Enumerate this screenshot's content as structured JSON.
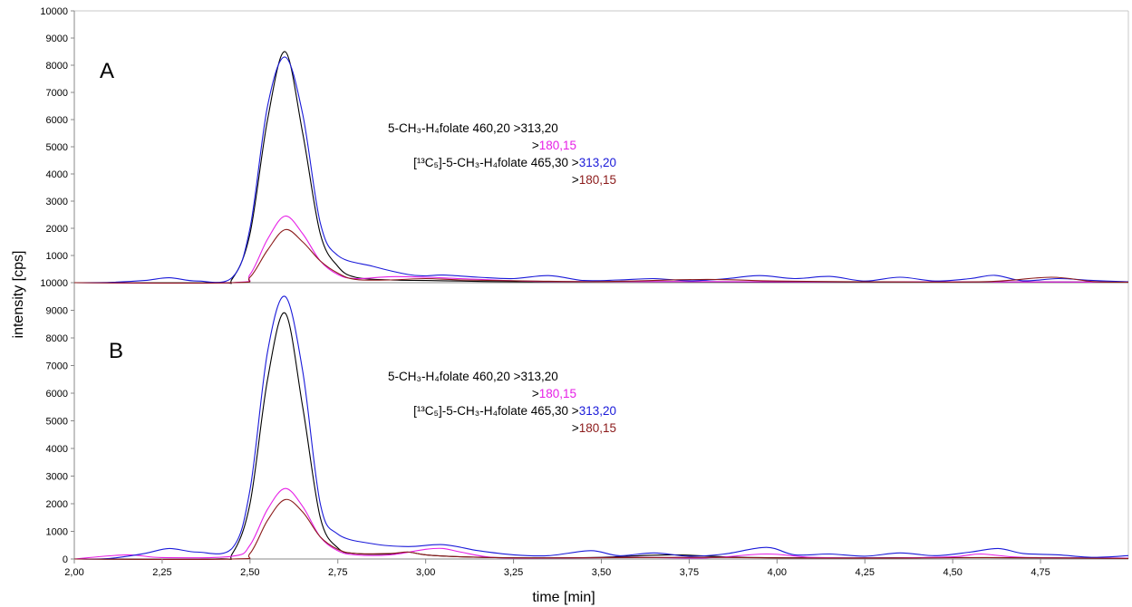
{
  "chart_data": {
    "type": "line",
    "xlabel": "time [min]",
    "ylabel": "intensity [cps]",
    "x_ticks": [
      "2,00",
      "2,25",
      "2,50",
      "2,75",
      "3,00",
      "3,25",
      "3,50",
      "3,75",
      "4,00",
      "4,25",
      "4,50",
      "4,75"
    ],
    "x_tick_values": [
      2.0,
      2.25,
      2.5,
      2.75,
      3.0,
      3.25,
      3.5,
      3.75,
      4.0,
      4.25,
      4.5,
      4.75
    ],
    "xlim": [
      2.0,
      5.0
    ],
    "grid": false,
    "colors": {
      "black": "#000000",
      "magenta": "#e61fe6",
      "blue": "#1a1ad9",
      "brown": "#8b1a1a"
    },
    "panels": [
      {
        "label": "A",
        "ylim": [
          0,
          10000
        ],
        "y_ticks": [
          "10000",
          "9000",
          "8000",
          "7000",
          "6000",
          "5000",
          "4000",
          "3000",
          "2000",
          "1000"
        ],
        "y_tick_values": [
          10000,
          9000,
          8000,
          7000,
          6000,
          5000,
          4000,
          3000,
          2000,
          1000
        ],
        "legend": {
          "line1_text": "5-CH₃-H₄folate 460,20 >313,20",
          "line2_prefix": ">",
          "line2_value": "180,15",
          "line3_text": "[¹³C₅]-5-CH₃-H₄folate 465,30 >",
          "line3_value": "313,20",
          "line4_prefix": ">",
          "line4_value": "180,15"
        },
        "series": [
          {
            "color": "black",
            "x": [
              2.0,
              2.4,
              2.45,
              2.5,
              2.55,
              2.6,
              2.65,
              2.7,
              2.75,
              2.8,
              2.9,
              3.0,
              3.1,
              3.2,
              3.4,
              3.6,
              3.8,
              4.0,
              4.5,
              5.0
            ],
            "y": [
              0,
              0,
              150,
              1800,
              6000,
              8500,
              5500,
              1800,
              600,
              200,
              100,
              80,
              60,
              40,
              30,
              40,
              30,
              20,
              30,
              20
            ]
          },
          {
            "color": "magenta",
            "x": [
              2.0,
              2.45,
              2.5,
              2.55,
              2.6,
              2.65,
              2.7,
              2.75,
              2.8,
              2.9,
              3.0,
              3.1,
              3.3,
              3.5,
              3.8,
              4.0,
              4.5,
              5.0
            ],
            "y": [
              0,
              0,
              300,
              1600,
              2450,
              1800,
              800,
              300,
              150,
              220,
              200,
              150,
              50,
              40,
              40,
              30,
              30,
              20
            ]
          },
          {
            "color": "blue",
            "x": [
              2.0,
              2.1,
              2.2,
              2.27,
              2.35,
              2.45,
              2.5,
              2.55,
              2.6,
              2.65,
              2.7,
              2.75,
              2.85,
              2.95,
              3.0,
              3.05,
              3.15,
              3.25,
              3.35,
              3.45,
              3.55,
              3.65,
              3.75,
              3.85,
              3.95,
              4.05,
              4.15,
              4.25,
              4.35,
              4.45,
              4.55,
              4.62,
              4.7,
              4.8,
              4.9,
              5.0
            ],
            "y": [
              0,
              10,
              80,
              180,
              60,
              200,
              2000,
              6500,
              8300,
              6200,
              2200,
              1000,
              600,
              300,
              250,
              280,
              200,
              150,
              260,
              80,
              100,
              150,
              70,
              140,
              260,
              150,
              230,
              60,
              200,
              60,
              150,
              270,
              70,
              150,
              80,
              30
            ]
          },
          {
            "color": "brown",
            "x": [
              2.0,
              2.45,
              2.5,
              2.55,
              2.6,
              2.65,
              2.7,
              2.75,
              2.8,
              2.9,
              3.0,
              3.1,
              3.3,
              3.5,
              3.8,
              4.0,
              4.3,
              4.6,
              4.78,
              4.9,
              5.0
            ],
            "y": [
              0,
              0,
              200,
              1200,
              1950,
              1500,
              800,
              350,
              120,
              100,
              150,
              100,
              60,
              40,
              120,
              60,
              30,
              40,
              200,
              40,
              20
            ]
          }
        ]
      },
      {
        "label": "B",
        "ylim": [
          0,
          10000
        ],
        "y_ticks": [
          "10000",
          "9000",
          "8000",
          "7000",
          "6000",
          "5000",
          "4000",
          "3000",
          "2000",
          "1000",
          "0"
        ],
        "y_tick_values": [
          10000,
          9000,
          8000,
          7000,
          6000,
          5000,
          4000,
          3000,
          2000,
          1000,
          0
        ],
        "legend": {
          "line1_text": "5-CH₃-H₄folate 460,20 >313,20",
          "line2_prefix": ">",
          "line2_value": "180,15",
          "line3_text": "[¹³C₅]-5-CH₃-H₄folate 465,30 >",
          "line3_value": "313,20",
          "line4_prefix": ">",
          "line4_value": "180,15"
        },
        "series": [
          {
            "color": "black",
            "x": [
              2.0,
              2.4,
              2.45,
              2.5,
              2.55,
              2.6,
              2.65,
              2.7,
              2.75,
              2.8,
              2.9,
              2.95,
              3.0,
              3.1,
              3.3,
              3.5,
              3.7,
              3.9,
              4.2,
              4.5,
              5.0
            ],
            "y": [
              0,
              0,
              200,
              2000,
              6500,
              8900,
              5500,
              1500,
              400,
              200,
              180,
              250,
              150,
              80,
              40,
              60,
              150,
              60,
              40,
              50,
              30
            ]
          },
          {
            "color": "magenta",
            "x": [
              2.0,
              2.15,
              2.25,
              2.45,
              2.5,
              2.55,
              2.6,
              2.65,
              2.7,
              2.75,
              2.8,
              2.9,
              3.0,
              3.05,
              3.1,
              3.2,
              3.4,
              3.6,
              3.8,
              3.97,
              4.1,
              4.3,
              4.5,
              4.58,
              4.7,
              5.0
            ],
            "y": [
              0,
              150,
              50,
              100,
              500,
              1800,
              2550,
              1900,
              800,
              300,
              150,
              150,
              350,
              380,
              250,
              50,
              40,
              60,
              40,
              180,
              60,
              40,
              80,
              180,
              60,
              30
            ]
          },
          {
            "color": "blue",
            "x": [
              2.0,
              2.1,
              2.2,
              2.27,
              2.35,
              2.45,
              2.5,
              2.55,
              2.6,
              2.65,
              2.7,
              2.75,
              2.85,
              2.95,
              3.05,
              3.15,
              3.25,
              3.35,
              3.47,
              3.55,
              3.65,
              3.75,
              3.85,
              3.97,
              4.05,
              4.15,
              4.25,
              4.35,
              4.45,
              4.55,
              4.63,
              4.7,
              4.8,
              4.9,
              5.0
            ],
            "y": [
              0,
              20,
              200,
              380,
              250,
              400,
              2500,
              7500,
              9500,
              6800,
              2000,
              900,
              550,
              450,
              520,
              300,
              150,
              120,
              300,
              120,
              220,
              100,
              180,
              420,
              150,
              180,
              100,
              220,
              120,
              250,
              380,
              200,
              150,
              60,
              120
            ]
          },
          {
            "color": "brown",
            "x": [
              2.0,
              2.45,
              2.5,
              2.55,
              2.6,
              2.65,
              2.7,
              2.75,
              2.8,
              2.9,
              2.95,
              3.0,
              3.1,
              3.3,
              3.6,
              3.8,
              4.0,
              4.3,
              4.6,
              5.0
            ],
            "y": [
              0,
              0,
              200,
              1400,
              2150,
              1700,
              800,
              350,
              200,
              200,
              250,
              150,
              80,
              40,
              50,
              60,
              40,
              30,
              50,
              20
            ]
          }
        ]
      }
    ]
  }
}
